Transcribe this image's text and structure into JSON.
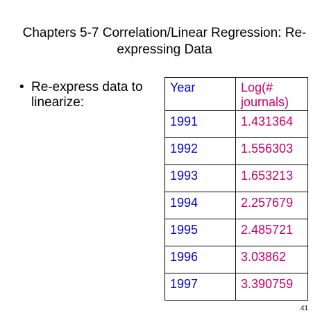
{
  "title": {
    "line1": "Chapters 5-7 Correlation/Linear Regression: Re-",
    "line2": "expressing Data"
  },
  "bullets": [
    {
      "marker": "•",
      "line1": "Re-express data to",
      "line2": "linearize:"
    }
  ],
  "table": {
    "headers": {
      "year": "Year",
      "log_line1": "Log(#",
      "log_line2": "journals)"
    },
    "rows": [
      {
        "year": "1991",
        "log": "1.431364"
      },
      {
        "year": "1992",
        "log": "1.556303"
      },
      {
        "year": "1993",
        "log": "1.653213"
      },
      {
        "year": "1994",
        "log": "2.257679"
      },
      {
        "year": "1995",
        "log": "2.485721"
      },
      {
        "year": "1996",
        "log": "3.03862"
      },
      {
        "year": "1997",
        "log": "3.390759"
      }
    ],
    "colors": {
      "year": "#0000cc",
      "log": "#cc0066"
    }
  },
  "page_number": "41"
}
